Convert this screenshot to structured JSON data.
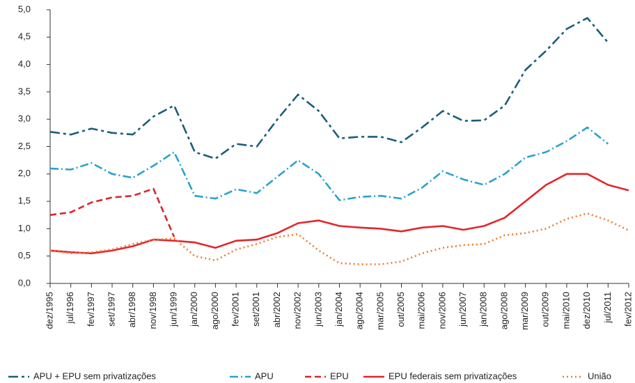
{
  "chart_data": {
    "type": "line",
    "x": [
      "dez/1995",
      "jul/1996",
      "fev/1997",
      "set/1997",
      "abr/1998",
      "nov/1998",
      "jun/1999",
      "jan/2000",
      "ago/2000",
      "fev/2001",
      "set/2001",
      "abr/2002",
      "nov/2002",
      "jun/2003",
      "jan/2004",
      "ago/2004",
      "mar/2005",
      "out/2005",
      "mai/2006",
      "nov/2006",
      "jun/2007",
      "jan/2008",
      "ago/2008",
      "mar/2009",
      "out/2009",
      "mai/2010",
      "dez/2010",
      "jul/2011",
      "fev/2012"
    ],
    "series": [
      {
        "name": "APU + EPU sem privatizações",
        "color": "#1b5e78",
        "dash": "14 5 4 5",
        "values": [
          2.77,
          2.72,
          2.83,
          2.75,
          2.72,
          3.05,
          3.25,
          2.4,
          2.28,
          2.55,
          2.5,
          3.0,
          3.45,
          3.15,
          2.65,
          2.68,
          2.68,
          2.58,
          2.85,
          3.15,
          2.97,
          2.98,
          3.25,
          3.9,
          4.25,
          4.65,
          4.85,
          4.4,
          null
        ]
      },
      {
        "name": "APU",
        "color": "#2aa3cc",
        "dash": "12 4 2 4",
        "values": [
          2.1,
          2.08,
          2.2,
          2.0,
          1.93,
          2.15,
          2.4,
          1.6,
          1.55,
          1.72,
          1.65,
          1.95,
          2.25,
          2.0,
          1.52,
          1.58,
          1.6,
          1.55,
          1.75,
          2.05,
          1.9,
          1.8,
          2.0,
          2.3,
          2.4,
          2.6,
          2.85,
          2.55,
          null
        ]
      },
      {
        "name": "EPU",
        "color": "#d8262c",
        "dash": "9 5",
        "values": [
          1.25,
          1.3,
          1.48,
          1.57,
          1.6,
          1.73,
          0.85,
          null,
          null,
          null,
          null,
          null,
          null,
          null,
          null,
          null,
          null,
          null,
          null,
          null,
          null,
          null,
          null,
          null,
          null,
          null,
          null,
          null,
          null
        ]
      },
      {
        "name": "EPU federais sem privatizações",
        "color": "#e2262b",
        "dash": "",
        "values": [
          0.6,
          0.57,
          0.55,
          0.6,
          0.68,
          0.8,
          0.78,
          0.75,
          0.65,
          0.78,
          0.8,
          0.92,
          1.1,
          1.15,
          1.05,
          1.02,
          1.0,
          0.95,
          1.02,
          1.05,
          0.98,
          1.05,
          1.2,
          1.5,
          1.8,
          2.0,
          2.0,
          1.8,
          1.7
        ]
      },
      {
        "name": "União",
        "color": "#f07a30",
        "dash": "2 4",
        "values": [
          0.6,
          0.55,
          0.57,
          0.62,
          0.72,
          0.8,
          0.82,
          0.5,
          0.42,
          0.62,
          0.72,
          0.85,
          0.9,
          0.6,
          0.37,
          0.35,
          0.35,
          0.4,
          0.55,
          0.65,
          0.7,
          0.72,
          0.88,
          0.92,
          1.0,
          1.18,
          1.28,
          1.15,
          0.97
        ]
      }
    ],
    "ylim": [
      0,
      5
    ],
    "yticks": [
      {
        "value": 0,
        "label": "0,0"
      },
      {
        "value": 0.5,
        "label": "0,5"
      },
      {
        "value": 1,
        "label": "1,0"
      },
      {
        "value": 1.5,
        "label": "1,5"
      },
      {
        "value": 2,
        "label": "2,0"
      },
      {
        "value": 2.5,
        "label": "2,5"
      },
      {
        "value": 3,
        "label": "3,0"
      },
      {
        "value": 3.5,
        "label": "3,5"
      },
      {
        "value": 4,
        "label": "4,0"
      },
      {
        "value": 4.5,
        "label": "4,5"
      },
      {
        "value": 5,
        "label": "5,0"
      }
    ],
    "grid": false,
    "legend": "bottom"
  }
}
